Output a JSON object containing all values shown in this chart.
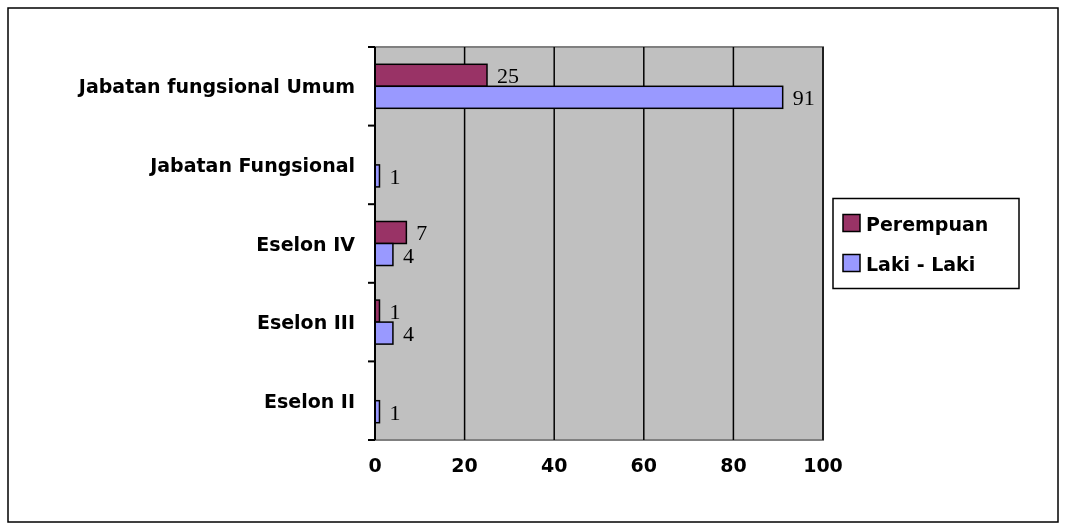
{
  "chart_data": {
    "type": "bar",
    "orientation": "horizontal",
    "categories": [
      "Jabatan fungsional Umum",
      "Jabatan Fungsional",
      "Eselon IV",
      "Eselon III",
      "Eselon II"
    ],
    "series": [
      {
        "name": "Perempuan",
        "color": "#993366",
        "values": [
          25,
          null,
          7,
          1,
          null
        ]
      },
      {
        "name": "Laki - Laki",
        "color": "#9999ff",
        "values": [
          91,
          1,
          4,
          4,
          1
        ]
      }
    ],
    "xlim": [
      0,
      100
    ],
    "xticks": [
      0,
      20,
      40,
      60,
      80,
      100
    ],
    "grid": "x",
    "legend": "right",
    "data_labels": true
  }
}
